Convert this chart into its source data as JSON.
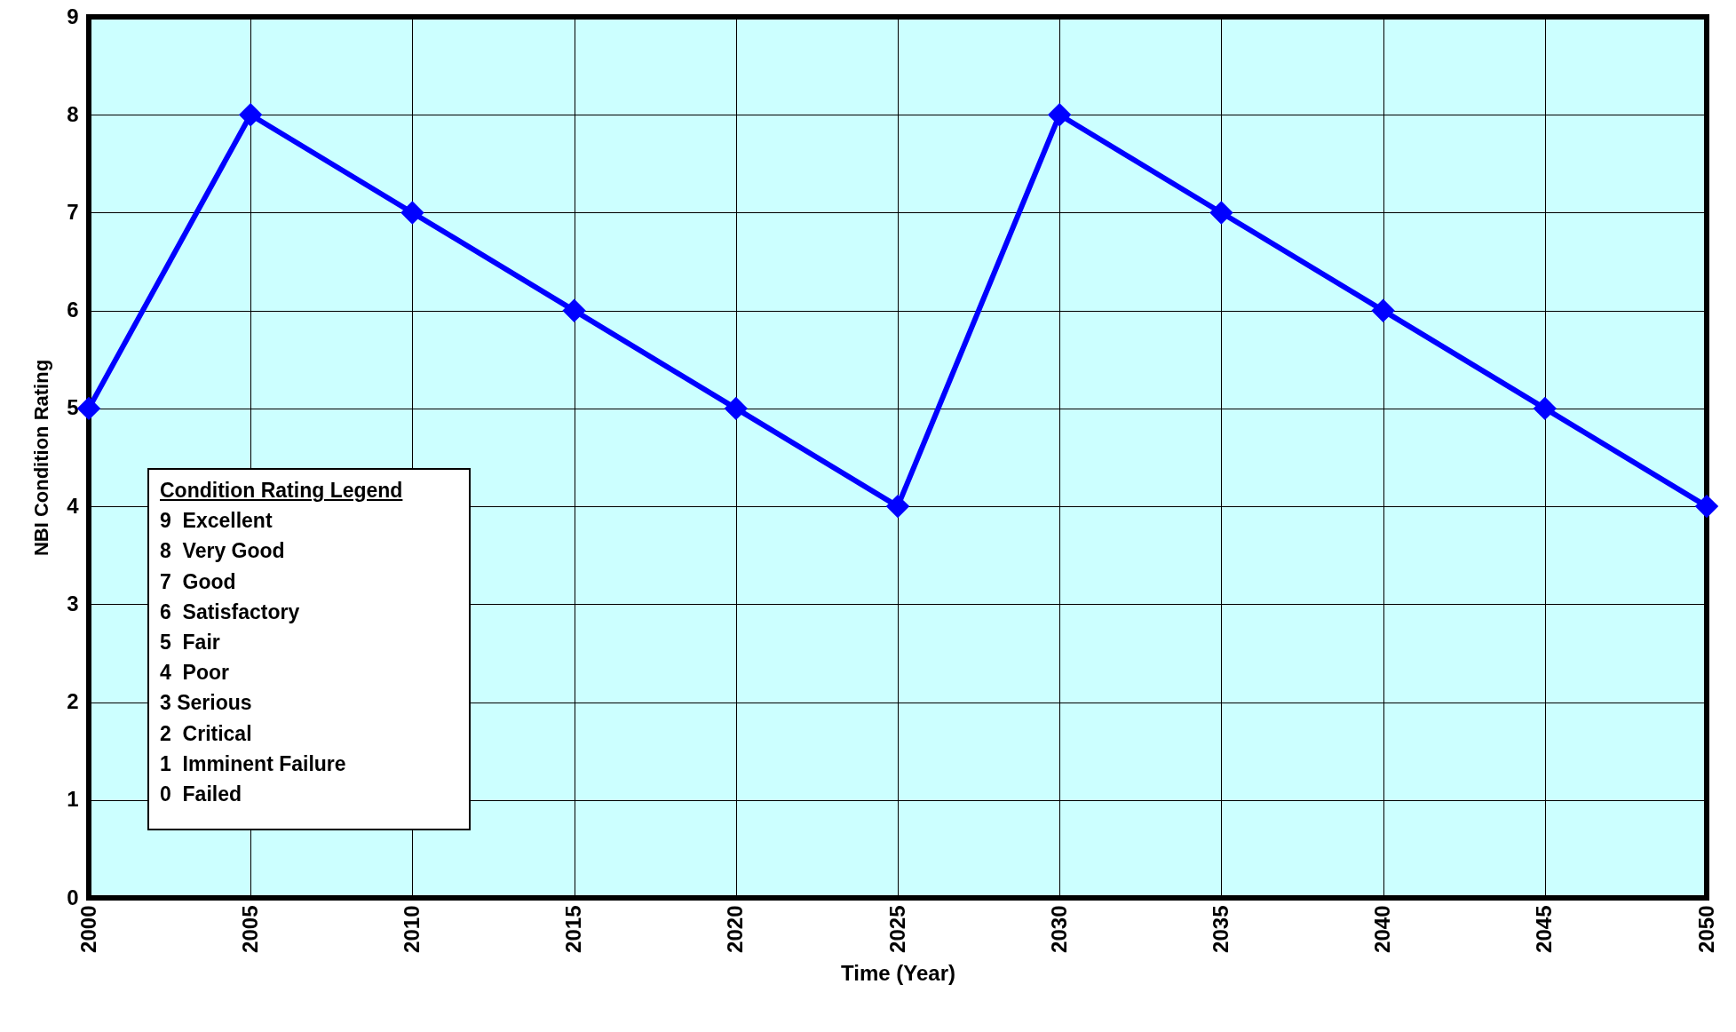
{
  "chart_data": {
    "type": "line",
    "xlabel": "Time (Year)",
    "ylabel": "NBI Condition Rating",
    "x": [
      2000,
      2005,
      2010,
      2015,
      2020,
      2025,
      2030,
      2035,
      2040,
      2045,
      2050
    ],
    "series": [
      {
        "color": "#0000ff",
        "values": [
          5,
          8,
          7,
          6,
          5,
          4,
          8,
          7,
          6,
          5,
          4
        ]
      }
    ],
    "xlim": [
      2000,
      2050
    ],
    "xticks": [
      2000,
      2005,
      2010,
      2015,
      2020,
      2025,
      2030,
      2035,
      2040,
      2045,
      2050
    ],
    "ylim": [
      0,
      9
    ],
    "yticks": [
      0,
      1,
      2,
      3,
      4,
      5,
      6,
      7,
      8,
      9
    ],
    "grid": true,
    "marker": "diamond",
    "line_style": "solid",
    "annotations": [
      "Condition Rating Legend",
      "9  Excellent",
      "8  Very Good",
      "7  Good",
      "6  Satisfactory",
      "5  Fair",
      "4  Poor",
      "3 Serious",
      "2  Critical",
      "1  Imminent Failure",
      "0  Failed"
    ]
  }
}
